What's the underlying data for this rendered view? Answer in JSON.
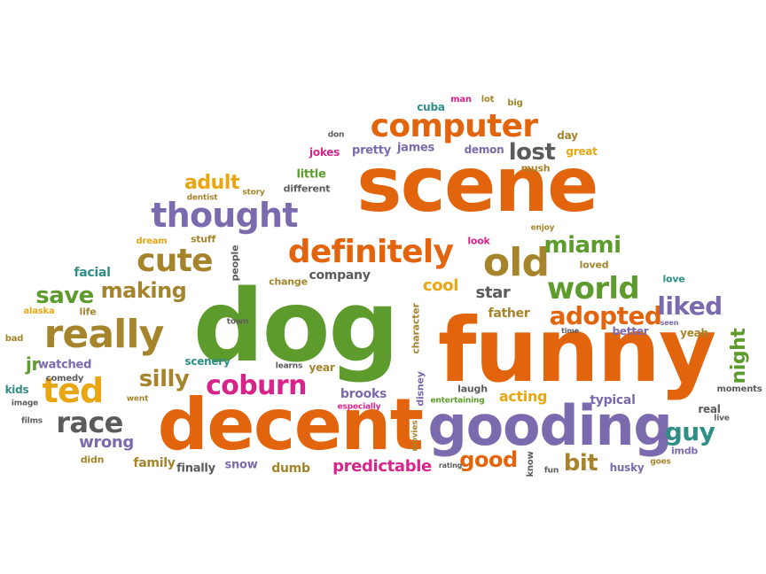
{
  "colors": {
    "orange": "#e2640c",
    "green": "#5d9c2c",
    "purple": "#7b6aae",
    "olive": "#a5842c",
    "gray": "#5b5b5b",
    "pink": "#d8248a",
    "yellow": "#e8a612",
    "teal": "#2f8f86"
  },
  "words": {
    "dog": "dog",
    "funny": "funny",
    "scene": "scene",
    "decent": "decent",
    "gooding": "gooding",
    "computer": "computer",
    "thought": "thought",
    "really": "really",
    "definitely": "definitely",
    "old": "old",
    "cute": "cute",
    "world": "world",
    "miami": "miami",
    "ted": "ted",
    "race": "race",
    "coburn": "coburn",
    "adopted": "adopted",
    "liked": "liked",
    "save": "save",
    "making": "making",
    "silly": "silly",
    "lost": "lost",
    "adult": "adult",
    "good": "good",
    "bit": "bit",
    "guy": "guy",
    "predictable": "predictable",
    "cool": "cool",
    "star": "star",
    "wrong": "wrong",
    "acting": "acting",
    "night": "night",
    "company": "company",
    "jr": "jr",
    "family": "family",
    "dumb": "dumb",
    "father": "father",
    "brooks": "brooks",
    "typical": "typical",
    "facial": "facial",
    "scenery": "scenery",
    "watched": "watched",
    "snow": "snow",
    "finally": "finally",
    "husky": "husky",
    "better": "better",
    "yeah": "yeah",
    "love": "love",
    "loved": "loved",
    "real": "real",
    "pretty": "pretty",
    "james": "james",
    "demon": "demon",
    "jokes": "jokes",
    "great": "great",
    "day": "day",
    "cuba": "cuba",
    "man": "man",
    "lot": "lot",
    "big": "big",
    "don": "don",
    "mush": "mush",
    "little": "little",
    "different": "different",
    "story": "story",
    "dentist": "dentist",
    "stuff": "stuff",
    "dream": "dream",
    "people": "people",
    "change": "change",
    "look": "look",
    "enjoy": "enjoy",
    "alaska": "alaska",
    "life": "life",
    "bad": "bad",
    "town": "town",
    "kids": "kids",
    "comedy": "comedy",
    "image": "image",
    "films": "films",
    "didn": "didn",
    "went": "went",
    "learns": "learns",
    "year": "year",
    "character": "character",
    "disney": "disney",
    "movies": "movies",
    "laugh": "laugh",
    "entertaining": "entertaining",
    "especially": "especially",
    "rating": "rating",
    "know": "know",
    "fun": "fun",
    "goes": "goes",
    "imdb": "imdb",
    "live": "live",
    "moments": "moments",
    "seen": "seen",
    "time": "time"
  }
}
